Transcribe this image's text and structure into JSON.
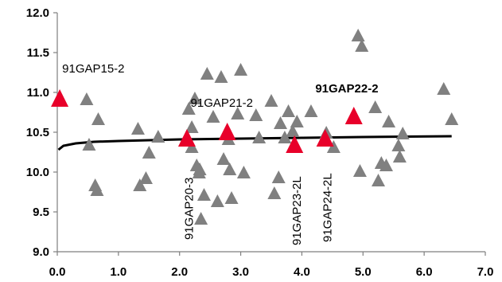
{
  "chart_data": {
    "type": "scatter",
    "xlim": [
      0,
      7
    ],
    "ylim": [
      9.0,
      12.0
    ],
    "x_ticks": [
      "0.0",
      "1.0",
      "2.0",
      "3.0",
      "4.0",
      "5.0",
      "6.0",
      "7.0"
    ],
    "y_ticks": [
      "9.0",
      "9.5",
      "10.0",
      "10.5",
      "11.0",
      "11.5",
      "12.0"
    ],
    "grid": false,
    "series": [
      {
        "marker": "triangle",
        "color": "#808080",
        "points": [
          [
            0.48,
            10.9
          ],
          [
            0.52,
            10.33
          ],
          [
            0.62,
            9.82
          ],
          [
            0.65,
            9.76
          ],
          [
            0.67,
            10.65
          ],
          [
            1.32,
            10.53
          ],
          [
            1.35,
            9.82
          ],
          [
            1.45,
            9.91
          ],
          [
            1.5,
            10.23
          ],
          [
            1.65,
            10.43
          ],
          [
            2.15,
            10.78
          ],
          [
            2.2,
            10.55
          ],
          [
            2.2,
            10.3
          ],
          [
            2.25,
            10.91
          ],
          [
            2.28,
            10.07
          ],
          [
            2.32,
            9.98
          ],
          [
            2.33,
            10.02
          ],
          [
            2.35,
            9.4
          ],
          [
            2.4,
            9.7
          ],
          [
            2.45,
            11.22
          ],
          [
            2.55,
            10.68
          ],
          [
            2.62,
            9.62
          ],
          [
            2.68,
            11.18
          ],
          [
            2.72,
            10.15
          ],
          [
            2.8,
            10.4
          ],
          [
            2.82,
            10.02
          ],
          [
            2.85,
            9.66
          ],
          [
            2.95,
            10.72
          ],
          [
            3.0,
            11.27
          ],
          [
            3.05,
            9.98
          ],
          [
            3.25,
            10.7
          ],
          [
            3.3,
            10.42
          ],
          [
            3.5,
            10.88
          ],
          [
            3.55,
            9.72
          ],
          [
            3.62,
            9.92
          ],
          [
            3.65,
            10.6
          ],
          [
            3.72,
            10.42
          ],
          [
            3.78,
            10.75
          ],
          [
            3.85,
            10.5
          ],
          [
            3.92,
            10.62
          ],
          [
            4.15,
            10.75
          ],
          [
            4.4,
            10.48
          ],
          [
            4.52,
            10.3
          ],
          [
            4.92,
            11.7
          ],
          [
            4.95,
            10.0
          ],
          [
            4.98,
            11.57
          ],
          [
            5.2,
            10.8
          ],
          [
            5.25,
            9.88
          ],
          [
            5.3,
            10.1
          ],
          [
            5.38,
            10.07
          ],
          [
            5.42,
            10.62
          ],
          [
            5.58,
            10.32
          ],
          [
            5.6,
            10.18
          ],
          [
            5.65,
            10.47
          ],
          [
            6.32,
            11.03
          ],
          [
            6.45,
            10.65
          ]
        ]
      },
      {
        "marker": "triangle",
        "color": "#e8002a",
        "points": [
          [
            0.04,
            10.9
          ],
          [
            2.12,
            10.4
          ],
          [
            2.78,
            10.48
          ],
          [
            3.88,
            10.32
          ],
          [
            4.38,
            10.4
          ],
          [
            4.85,
            10.68
          ]
        ]
      }
    ],
    "trendline": {
      "color": "#000000",
      "points": [
        [
          0.02,
          10.28
        ],
        [
          0.1,
          10.33
        ],
        [
          0.3,
          10.36
        ],
        [
          0.6,
          10.38
        ],
        [
          1.0,
          10.39
        ],
        [
          1.5,
          10.4
        ],
        [
          2.0,
          10.41
        ],
        [
          3.0,
          10.42
        ],
        [
          4.0,
          10.43
        ],
        [
          5.0,
          10.44
        ],
        [
          6.45,
          10.45
        ]
      ]
    },
    "annotations": [
      {
        "text": "91GAP15-2",
        "x": 0.08,
        "y": 11.25,
        "rotate": 0,
        "bold": false
      },
      {
        "text": "91GAP21-2",
        "x": 2.18,
        "y": 10.82,
        "rotate": 0,
        "bold": false
      },
      {
        "text": "91GAP22-2",
        "x": 4.22,
        "y": 11.0,
        "rotate": 0,
        "bold": true
      },
      {
        "text": "91GAP20-3",
        "x": 2.22,
        "y": 9.15,
        "rotate": -90,
        "bold": false
      },
      {
        "text": "91GAP23-2L",
        "x": 3.98,
        "y": 9.08,
        "rotate": -90,
        "bold": false
      },
      {
        "text": "91GAP24-2L",
        "x": 4.48,
        "y": 9.12,
        "rotate": -90,
        "bold": false
      }
    ]
  }
}
